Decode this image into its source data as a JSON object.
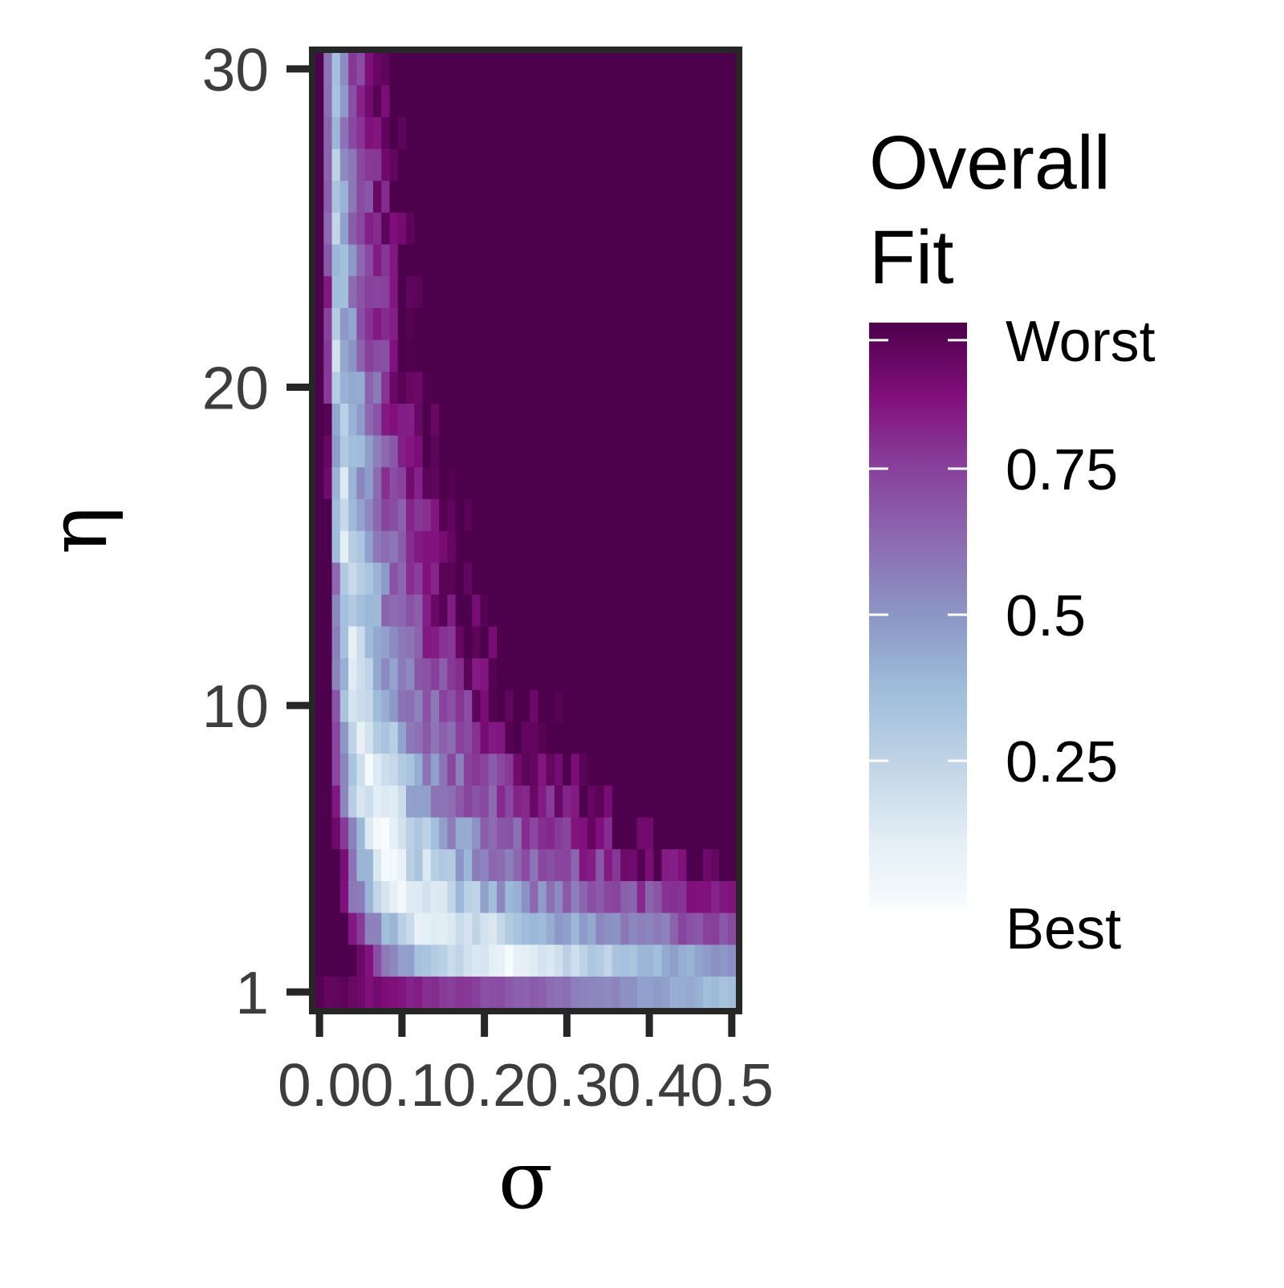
{
  "chart_data": {
    "type": "heatmap",
    "xlabel": "σ",
    "ylabel": "η",
    "x_range": [
      0.0,
      0.5
    ],
    "y_range": [
      1,
      30
    ],
    "x_tick_labels": [
      "0.0",
      "0.1",
      "0.2",
      "0.3",
      "0.4",
      "0.5"
    ],
    "y_tick_labels": [
      "1",
      "10",
      "20",
      "30"
    ],
    "x_tick_values": [
      0.0,
      0.1,
      0.2,
      0.3,
      0.4,
      0.5
    ],
    "y_tick_values": [
      1,
      10,
      20,
      30
    ],
    "grid": false,
    "n_cols": 51,
    "n_rows": 30,
    "legend": {
      "title": "Overall Fit",
      "position": "right",
      "range": [
        0.0,
        1.0
      ],
      "labels": [
        {
          "text": "Worst",
          "value": 0.97
        },
        {
          "text": "0.75",
          "value": 0.75
        },
        {
          "text": "0.5",
          "value": 0.5
        },
        {
          "text": "0.25",
          "value": 0.25
        },
        {
          "text": "Best",
          "value": 0.0
        }
      ]
    },
    "colormap": [
      "#f7fcfd",
      "#e0ecf4",
      "#bfd3e6",
      "#9ebcda",
      "#8c96c6",
      "#8c6bb1",
      "#88419d",
      "#810f7c",
      "#4d004b"
    ],
    "pattern": "Best fit (low values, near white) lies along a curved valley: η≈1–3 for σ≈0.2–0.5, rising to η≈5–10 near σ≈0.1–0.15; σ≈0 is worst (dark purple) for all η, and the upper-right region (large σ, large η) is poor fit (purple, ~0.7–0.9)."
  }
}
